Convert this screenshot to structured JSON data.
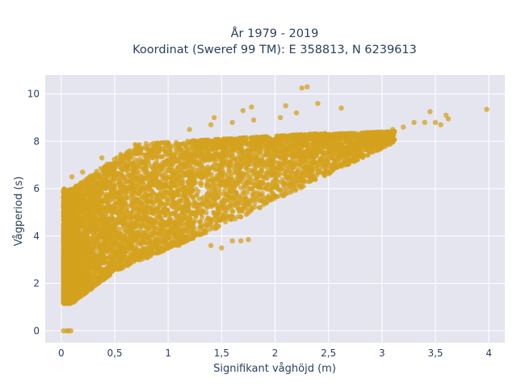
{
  "chart_data": {
    "type": "scatter",
    "title_line1": "År 1979 - 2019",
    "title_line2": "Koordinat (Sweref 99 TM): E 358813, N 6239613",
    "xlabel": "Signifikant våghöjd (m)",
    "ylabel": "Vågperiod (s)",
    "xlim": [
      -0.15,
      4.15
    ],
    "ylim": [
      -0.5,
      10.8
    ],
    "xticks": [
      0,
      0.5,
      1,
      1.5,
      2,
      2.5,
      3,
      3.5,
      4
    ],
    "xtick_labels": [
      "0",
      "0,5",
      "1",
      "1,5",
      "2",
      "2,5",
      "3",
      "3,5",
      "4"
    ],
    "yticks": [
      0,
      2,
      4,
      6,
      8,
      10
    ],
    "ytick_labels": [
      "0",
      "2",
      "4",
      "6",
      "8",
      "10"
    ],
    "grid": true,
    "colors": {
      "marker": "#d4a21e",
      "plot_bg": "#e5e5f0",
      "grid": "#ffffff",
      "text": "#2a3f5f"
    },
    "points_note": "Dense cloud of hourly observations; representative sample below",
    "points": [
      [
        0.02,
        0.0
      ],
      [
        0.05,
        0.0
      ],
      [
        0.07,
        0.0
      ],
      [
        0.09,
        0.0
      ],
      [
        0.03,
        1.3
      ],
      [
        0.04,
        1.2
      ],
      [
        0.08,
        1.15
      ],
      [
        0.05,
        1.4
      ],
      [
        0.1,
        1.25
      ],
      [
        0.12,
        1.4
      ],
      [
        0.18,
        1.6
      ],
      [
        0.25,
        1.9
      ],
      [
        0.35,
        2.2
      ],
      [
        0.5,
        2.6
      ],
      [
        0.7,
        3.1
      ],
      [
        0.9,
        3.5
      ],
      [
        1.1,
        3.9
      ],
      [
        1.3,
        4.4
      ],
      [
        1.5,
        4.9
      ],
      [
        1.7,
        5.4
      ],
      [
        2.0,
        6.1
      ],
      [
        2.3,
        6.8
      ],
      [
        2.6,
        7.3
      ],
      [
        2.9,
        7.7
      ],
      [
        0.1,
        6.5
      ],
      [
        0.2,
        6.7
      ],
      [
        0.38,
        7.3
      ],
      [
        0.5,
        7.1
      ],
      [
        0.75,
        7.7
      ],
      [
        1.0,
        7.9
      ],
      [
        1.2,
        8.5
      ],
      [
        1.4,
        8.7
      ],
      [
        1.6,
        8.8
      ],
      [
        1.8,
        8.9
      ],
      [
        2.05,
        9.0
      ],
      [
        1.7,
        9.3
      ],
      [
        1.78,
        9.45
      ],
      [
        2.2,
        9.2
      ],
      [
        2.1,
        9.5
      ],
      [
        2.4,
        9.6
      ],
      [
        1.43,
        9.0
      ],
      [
        2.25,
        10.25
      ],
      [
        2.3,
        10.3
      ],
      [
        2.62,
        9.4
      ],
      [
        3.1,
        8.5
      ],
      [
        3.2,
        8.6
      ],
      [
        3.3,
        8.8
      ],
      [
        3.4,
        8.8
      ],
      [
        3.45,
        9.25
      ],
      [
        3.5,
        8.8
      ],
      [
        3.55,
        8.7
      ],
      [
        3.6,
        9.1
      ],
      [
        3.62,
        8.95
      ],
      [
        3.98,
        9.35
      ],
      [
        3.05,
        8.1
      ],
      [
        2.95,
        8.05
      ],
      [
        0.3,
        4.5
      ],
      [
        0.5,
        5.0
      ],
      [
        0.7,
        5.5
      ],
      [
        0.9,
        5.6
      ],
      [
        1.2,
        5.9
      ],
      [
        1.3,
        4.1
      ],
      [
        1.4,
        3.6
      ],
      [
        1.5,
        3.5
      ],
      [
        1.6,
        3.8
      ],
      [
        1.68,
        3.8
      ],
      [
        1.75,
        3.85
      ],
      [
        1.1,
        3.6
      ],
      [
        0.6,
        2.9
      ],
      [
        0.4,
        3.6
      ],
      [
        0.8,
        4.0
      ],
      [
        1.0,
        4.5
      ]
    ]
  }
}
